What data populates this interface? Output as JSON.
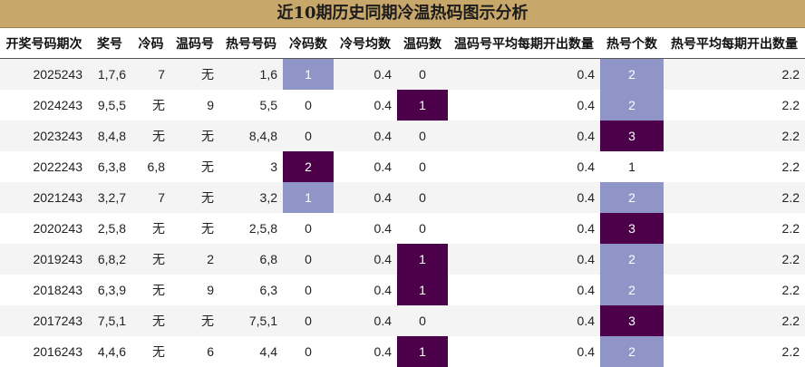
{
  "title": "近10期历史同期冷温热码图示分析",
  "headers": [
    "开奖号码期次",
    "奖号",
    "冷码",
    "温码号",
    "热号号码",
    "冷码数",
    "冷号均数",
    "温码数",
    "温码号平均每期开出数量",
    "热号个数",
    "热号平均每期开出数量"
  ],
  "rows": [
    [
      "2025243",
      "1,7,6",
      "7",
      "无",
      "1,6",
      "1",
      "0.4",
      "0",
      "0.4",
      "2",
      "2.2"
    ],
    [
      "2024243",
      "9,5,5",
      "无",
      "9",
      "5,5",
      "0",
      "0.4",
      "1",
      "0.4",
      "2",
      "2.2"
    ],
    [
      "2023243",
      "8,4,8",
      "无",
      "无",
      "8,4,8",
      "0",
      "0.4",
      "0",
      "0.4",
      "3",
      "2.2"
    ],
    [
      "2022243",
      "6,3,8",
      "6,8",
      "无",
      "3",
      "2",
      "0.4",
      "0",
      "0.4",
      "1",
      "2.2"
    ],
    [
      "2021243",
      "3,2,7",
      "7",
      "无",
      "3,2",
      "1",
      "0.4",
      "0",
      "0.4",
      "2",
      "2.2"
    ],
    [
      "2020243",
      "2,5,8",
      "无",
      "无",
      "2,5,8",
      "0",
      "0.4",
      "0",
      "0.4",
      "3",
      "2.2"
    ],
    [
      "2019243",
      "6,8,2",
      "无",
      "2",
      "6,8",
      "0",
      "0.4",
      "1",
      "0.4",
      "2",
      "2.2"
    ],
    [
      "2018243",
      "6,3,9",
      "无",
      "9",
      "6,3",
      "0",
      "0.4",
      "1",
      "0.4",
      "2",
      "2.2"
    ],
    [
      "2017243",
      "7,5,1",
      "无",
      "无",
      "7,5,1",
      "0",
      "0.4",
      "0",
      "0.4",
      "3",
      "2.2"
    ],
    [
      "2016243",
      "4,4,6",
      "无",
      "6",
      "4,4",
      "0",
      "0.4",
      "1",
      "0.4",
      "2",
      "2.2"
    ]
  ],
  "colors": {
    "title_bg": "#c8a76b",
    "light_highlight": "#8f95c6",
    "dark_highlight": "#4c0049",
    "stripe": "#f4f4f4"
  }
}
